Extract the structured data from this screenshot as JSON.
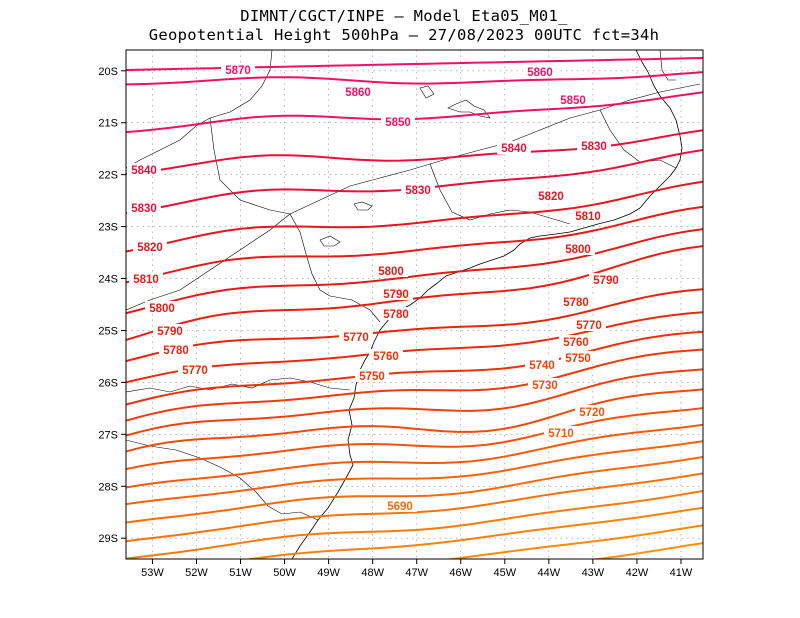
{
  "title_line1": "DIMNT/CGCT/INPE –  Model Eta05_M01_",
  "title_line2": "Geopotential Height 500hPa –  27/08/2023 00UTC fct=34h",
  "map": {
    "lon_range": [
      -53.6,
      -40.5
    ],
    "lat_range": [
      -29.4,
      -19.6
    ],
    "lon_ticks": [
      -53,
      -52,
      -51,
      -50,
      -49,
      -48,
      -47,
      -46,
      -45,
      -44,
      -43,
      -42,
      -41
    ],
    "lon_labels": [
      "53W",
      "52W",
      "51W",
      "50W",
      "49W",
      "48W",
      "47W",
      "46W",
      "45W",
      "44W",
      "43W",
      "42W",
      "41W"
    ],
    "lat_ticks": [
      -20,
      -21,
      -22,
      -23,
      -24,
      -25,
      -26,
      -27,
      -28,
      -29
    ],
    "lat_labels": [
      "20S",
      "21S",
      "22S",
      "23S",
      "24S",
      "25S",
      "26S",
      "27S",
      "28S",
      "29S"
    ],
    "gridlines": "dotted"
  },
  "contour_levels": [
    {
      "value": 5870,
      "label": "5870",
      "color": "#ee1166"
    },
    {
      "value": 5860,
      "label": "5860",
      "color": "#ee1166"
    },
    {
      "value": 5850,
      "label": "5850",
      "color": "#ee1166"
    },
    {
      "value": 5840,
      "label": "5840",
      "color": "#e8103a"
    },
    {
      "value": 5830,
      "label": "5830",
      "color": "#e8103a"
    },
    {
      "value": 5820,
      "label": "5820",
      "color": "#e61522"
    },
    {
      "value": 5810,
      "label": "5810",
      "color": "#e61a16"
    },
    {
      "value": 5800,
      "label": "5800",
      "color": "#e61a16"
    },
    {
      "value": 5790,
      "label": "5790",
      "color": "#e81f10"
    },
    {
      "value": 5780,
      "label": "5780",
      "color": "#e8240e"
    },
    {
      "value": 5770,
      "label": "5770",
      "color": "#e82a0e"
    },
    {
      "value": 5760,
      "label": "5760",
      "color": "#ea320c"
    },
    {
      "value": 5750,
      "label": "5750",
      "color": "#ec3a0c"
    },
    {
      "value": 5740,
      "label": "5740",
      "color": "#ee420c"
    },
    {
      "value": 5730,
      "label": "5730",
      "color": "#f04a0c"
    },
    {
      "value": 5720,
      "label": "5720",
      "color": "#f2520c"
    },
    {
      "value": 5710,
      "label": "5710",
      "color": "#f45a0c"
    },
    {
      "value": 5700,
      "label": "",
      "color": "#f5620c"
    },
    {
      "value": 5690,
      "label": "5690",
      "color": "#f66a0c"
    },
    {
      "value": 5680,
      "label": "",
      "color": "#f7720c"
    },
    {
      "value": 5670,
      "label": "",
      "color": "#f87a0c"
    },
    {
      "value": 5660,
      "label": "",
      "color": "#f9820c"
    },
    {
      "value": 5650,
      "label": "",
      "color": "#fa8a0c"
    },
    {
      "value": 5640,
      "label": "",
      "color": "#fb920c"
    }
  ],
  "colors": {
    "coast": "#000000",
    "grid": "#888888",
    "frame": "#000000"
  }
}
